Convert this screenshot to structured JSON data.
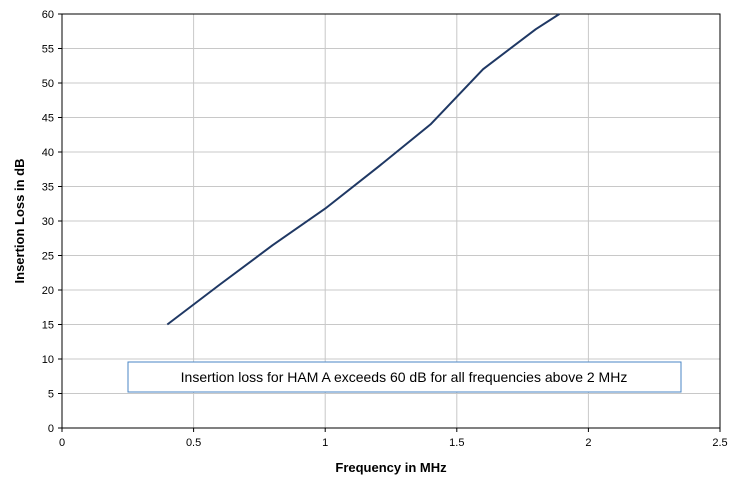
{
  "chart_data": {
    "type": "line",
    "xlabel": "Frequency in MHz",
    "ylabel": "Insertion Loss in dB",
    "xlim": [
      0,
      2.5
    ],
    "ylim": [
      0,
      60
    ],
    "xticks": [
      0,
      0.5,
      1,
      1.5,
      2,
      2.5
    ],
    "xtick_labels": [
      "0",
      "0.5",
      "1",
      "1.5",
      "2",
      "2.5"
    ],
    "yticks": [
      0,
      5,
      10,
      15,
      20,
      25,
      30,
      35,
      40,
      45,
      50,
      55,
      60
    ],
    "ytick_labels": [
      "0",
      "5",
      "10",
      "15",
      "20",
      "25",
      "30",
      "35",
      "40",
      "45",
      "50",
      "55",
      "60"
    ],
    "grid": true,
    "series": [
      {
        "color": "#1f3864",
        "x": [
          0.4,
          0.6,
          0.8,
          1.0,
          1.2,
          1.4,
          1.6,
          1.8,
          1.89
        ],
        "y": [
          15,
          20.8,
          26.5,
          31.8,
          37.8,
          44.0,
          52.0,
          57.8,
          60
        ]
      }
    ],
    "annotations": [
      {
        "text": "Insertion loss for HAM A exceeds 60 dB for all frequencies above 2 MHz",
        "border_color": "#4a86c5"
      }
    ]
  }
}
